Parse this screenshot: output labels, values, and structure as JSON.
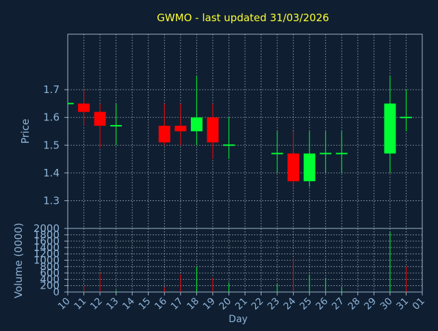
{
  "colors": {
    "background": "#0f1f31",
    "title": "#ffff33",
    "axis_text": "#8fb4d8",
    "frame": "#9fb5cc",
    "grid": "#c8d2dc",
    "up": "#00ff33",
    "down": "#ff0000"
  },
  "chart_data": [
    {
      "type": "candlestick",
      "title": "GWMO - last updated 31/03/2026",
      "ylabel": "Price",
      "ylim": [
        1.2,
        1.9
      ],
      "yticks": [
        1.3,
        1.4,
        1.5,
        1.6,
        1.7
      ],
      "ytick_labels": [
        "1.3",
        "1.4",
        "1.5",
        "1.6",
        "1.7"
      ],
      "categories": [
        "10",
        "11",
        "12",
        "13",
        "14",
        "15",
        "16",
        "17",
        "18",
        "19",
        "20",
        "21",
        "22",
        "23",
        "24",
        "25",
        "26",
        "27",
        "28",
        "29",
        "30",
        "31",
        "01"
      ],
      "series": [
        {
          "candles": [
            {
              "day": "10",
              "open": 1.65,
              "high": 1.65,
              "low": 1.65,
              "close": 1.65
            },
            {
              "day": "11",
              "open": 1.65,
              "high": 1.7,
              "low": 1.57,
              "close": 1.62
            },
            {
              "day": "12",
              "open": 1.62,
              "high": 1.65,
              "low": 1.49,
              "close": 1.57
            },
            {
              "day": "13",
              "open": 1.57,
              "high": 1.65,
              "low": 1.5,
              "close": 1.57
            },
            {
              "day": "16",
              "open": 1.57,
              "high": 1.65,
              "low": 1.5,
              "close": 1.51
            },
            {
              "day": "17",
              "open": 1.57,
              "high": 1.65,
              "low": 1.5,
              "close": 1.55
            },
            {
              "day": "18",
              "open": 1.55,
              "high": 1.75,
              "low": 1.5,
              "close": 1.6
            },
            {
              "day": "19",
              "open": 1.6,
              "high": 1.65,
              "low": 1.45,
              "close": 1.51
            },
            {
              "day": "20",
              "open": 1.5,
              "high": 1.6,
              "low": 1.45,
              "close": 1.5
            },
            {
              "day": "23",
              "open": 1.47,
              "high": 1.55,
              "low": 1.4,
              "close": 1.47
            },
            {
              "day": "24",
              "open": 1.47,
              "high": 1.55,
              "low": 1.35,
              "close": 1.37
            },
            {
              "day": "25",
              "open": 1.37,
              "high": 1.55,
              "low": 1.35,
              "close": 1.47
            },
            {
              "day": "26",
              "open": 1.47,
              "high": 1.55,
              "low": 1.4,
              "close": 1.47
            },
            {
              "day": "27",
              "open": 1.47,
              "high": 1.55,
              "low": 1.4,
              "close": 1.47
            },
            {
              "day": "30",
              "open": 1.47,
              "high": 1.75,
              "low": 1.4,
              "close": 1.65
            },
            {
              "day": "31",
              "open": 1.6,
              "high": 1.7,
              "low": 1.55,
              "close": 1.6
            }
          ]
        }
      ]
    },
    {
      "type": "bar",
      "ylabel": "Volume (0000)",
      "xlabel": "Day",
      "ylim": [
        0,
        2000
      ],
      "yticks": [
        0,
        200,
        400,
        600,
        800,
        1000,
        1200,
        1400,
        1600,
        1800,
        2000
      ],
      "ytick_labels": [
        "0",
        "200",
        "400",
        "600",
        "800",
        "1000",
        "1200",
        "1400",
        "1600",
        "1800",
        "2000"
      ],
      "categories": [
        "10",
        "11",
        "12",
        "13",
        "14",
        "15",
        "16",
        "17",
        "18",
        "19",
        "20",
        "21",
        "22",
        "23",
        "24",
        "25",
        "26",
        "27",
        "28",
        "29",
        "30",
        "31",
        "01"
      ],
      "series": [
        {
          "values": [
            {
              "day": "10",
              "volume": 0,
              "dir": "up"
            },
            {
              "day": "11",
              "volume": 200,
              "dir": "down"
            },
            {
              "day": "12",
              "volume": 600,
              "dir": "down"
            },
            {
              "day": "13",
              "volume": 50,
              "dir": "up"
            },
            {
              "day": "16",
              "volume": 150,
              "dir": "down"
            },
            {
              "day": "17",
              "volume": 550,
              "dir": "down"
            },
            {
              "day": "18",
              "volume": 800,
              "dir": "up"
            },
            {
              "day": "19",
              "volume": 450,
              "dir": "down"
            },
            {
              "day": "20",
              "volume": 300,
              "dir": "up"
            },
            {
              "day": "23",
              "volume": 250,
              "dir": "up"
            },
            {
              "day": "24",
              "volume": 1050,
              "dir": "down"
            },
            {
              "day": "25",
              "volume": 550,
              "dir": "up"
            },
            {
              "day": "26",
              "volume": 450,
              "dir": "up"
            },
            {
              "day": "27",
              "volume": 150,
              "dir": "up"
            },
            {
              "day": "30",
              "volume": 1900,
              "dir": "up"
            },
            {
              "day": "31",
              "volume": 800,
              "dir": "down"
            }
          ]
        }
      ]
    }
  ]
}
